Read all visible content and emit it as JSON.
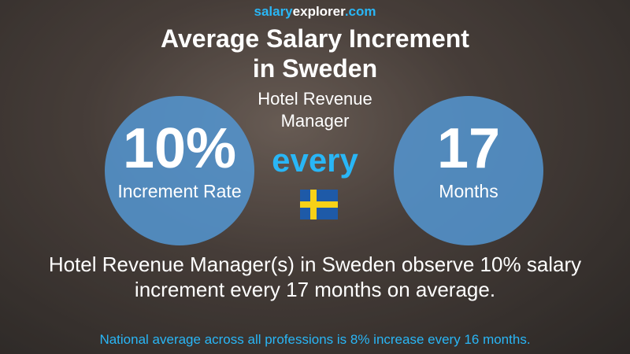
{
  "brand": {
    "part1": "salary",
    "part2": "explorer",
    "part3": ".com"
  },
  "title_line1": "Average Salary Increment",
  "title_line2": "in Sweden",
  "job_line1": "Hotel Revenue",
  "job_line2": "Manager",
  "left_circle": {
    "value": "10%",
    "label": "Increment Rate"
  },
  "middle": "every",
  "right_circle": {
    "value": "17",
    "label": "Months"
  },
  "summary_line1": "Hotel Revenue Manager(s) in Sweden observe 10% salary",
  "summary_line2": "increment every 17 months on average.",
  "national": "National average across all professions is 8% increase every 16 months.",
  "colors": {
    "accent": "#29b6f6",
    "circle": "#5496d2",
    "national": "#29b6f6"
  }
}
